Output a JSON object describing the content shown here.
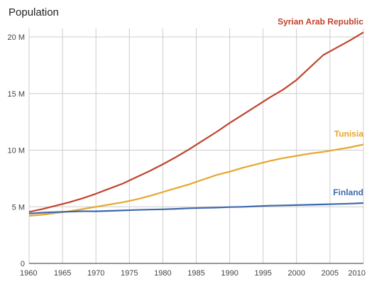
{
  "chart_data": {
    "type": "line",
    "title": "Population",
    "xlabel": "",
    "ylabel": "",
    "xlim": [
      1960,
      2010
    ],
    "ylim": [
      0,
      20
    ],
    "x_ticks": [
      "1960",
      "1965",
      "1970",
      "1975",
      "1980",
      "1985",
      "1990",
      "1995",
      "2000",
      "2005",
      "2010"
    ],
    "y_ticks": [
      {
        "value": 0,
        "label": "0"
      },
      {
        "value": 5,
        "label": "5 M"
      },
      {
        "value": 10,
        "label": "10 M"
      },
      {
        "value": 15,
        "label": "15 M"
      },
      {
        "value": 20,
        "label": "20 M"
      }
    ],
    "grid": true,
    "x": [
      1960,
      1962,
      1964,
      1966,
      1968,
      1970,
      1972,
      1974,
      1976,
      1978,
      1980,
      1982,
      1984,
      1986,
      1988,
      1990,
      1992,
      1994,
      1996,
      1998,
      2000,
      2002,
      2004,
      2006,
      2008,
      2010
    ],
    "series": [
      {
        "name": "Syrian Arab Republic",
        "color": "#c0442c",
        "values": [
          4.55,
          4.8,
          5.1,
          5.4,
          5.75,
          6.15,
          6.6,
          7.05,
          7.6,
          8.15,
          8.75,
          9.4,
          10.1,
          10.85,
          11.6,
          12.4,
          13.15,
          13.9,
          14.65,
          15.35,
          16.2,
          17.3,
          18.4,
          19.05,
          19.7,
          20.4
        ]
      },
      {
        "name": "Tunisia",
        "color": "#e5a72a",
        "values": [
          4.2,
          4.3,
          4.45,
          4.6,
          4.8,
          5.0,
          5.2,
          5.4,
          5.65,
          5.95,
          6.3,
          6.65,
          7.0,
          7.4,
          7.8,
          8.1,
          8.45,
          8.75,
          9.05,
          9.3,
          9.5,
          9.7,
          9.85,
          10.05,
          10.25,
          10.5
        ]
      },
      {
        "name": "Finland",
        "color": "#3c68ad",
        "values": [
          4.4,
          4.48,
          4.53,
          4.57,
          4.61,
          4.6,
          4.64,
          4.68,
          4.72,
          4.75,
          4.78,
          4.82,
          4.87,
          4.9,
          4.93,
          4.97,
          5.0,
          5.05,
          5.1,
          5.12,
          5.15,
          5.18,
          5.21,
          5.25,
          5.28,
          5.33
        ]
      }
    ]
  }
}
